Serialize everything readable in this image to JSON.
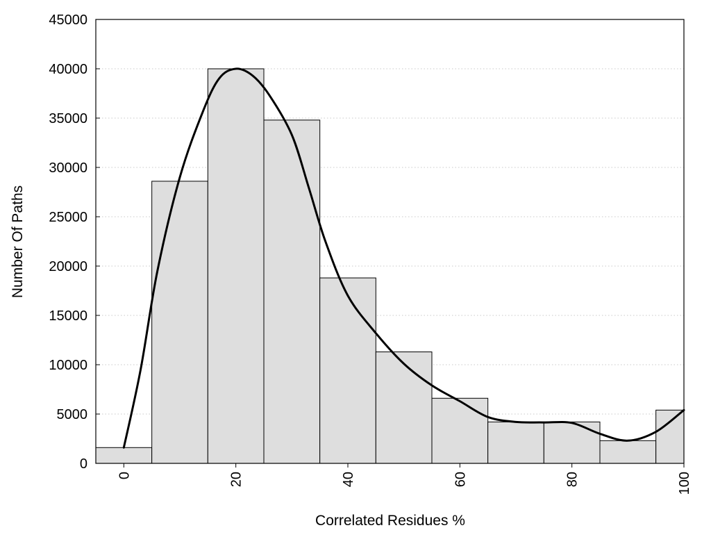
{
  "chart_data": {
    "type": "bar",
    "subtype": "histogram-with-density-curve",
    "xlabel": "Correlated Residues %",
    "ylabel": "Number Of Paths",
    "xlim": [
      -5,
      100
    ],
    "ylim": [
      0,
      45000
    ],
    "x_ticks": [
      0,
      20,
      40,
      60,
      80,
      100
    ],
    "y_ticks": [
      0,
      5000,
      10000,
      15000,
      20000,
      25000,
      30000,
      35000,
      40000,
      45000
    ],
    "x_tick_rotation": "vertical",
    "grid": "horizontal-dotted",
    "legend": "none",
    "bin_width": 10,
    "bins": [
      {
        "center": 0,
        "value": 1600
      },
      {
        "center": 10,
        "value": 28600
      },
      {
        "center": 20,
        "value": 40000
      },
      {
        "center": 30,
        "value": 34800
      },
      {
        "center": 40,
        "value": 18800
      },
      {
        "center": 50,
        "value": 11300
      },
      {
        "center": 60,
        "value": 6600
      },
      {
        "center": 70,
        "value": 4200
      },
      {
        "center": 80,
        "value": 4200
      },
      {
        "center": 90,
        "value": 2300
      },
      {
        "center": 100,
        "value": 5400
      }
    ],
    "curve": {
      "x": [
        0,
        3,
        6,
        10,
        14,
        17,
        20,
        23,
        26,
        30,
        33,
        36,
        40,
        45,
        50,
        55,
        60,
        65,
        70,
        75,
        80,
        85,
        90,
        95,
        100
      ],
      "y": [
        1600,
        9500,
        19500,
        29000,
        35500,
        39000,
        40000,
        39300,
        37300,
        33300,
        28000,
        22500,
        17000,
        13200,
        10100,
        7900,
        6300,
        4700,
        4200,
        4150,
        4100,
        3000,
        2300,
        3200,
        5400
      ]
    },
    "colors": {
      "bar_fill": "#dedede",
      "bar_stroke": "#000000",
      "curve": "#000000",
      "grid": "#c8c8c8",
      "axes": "#000000"
    }
  }
}
